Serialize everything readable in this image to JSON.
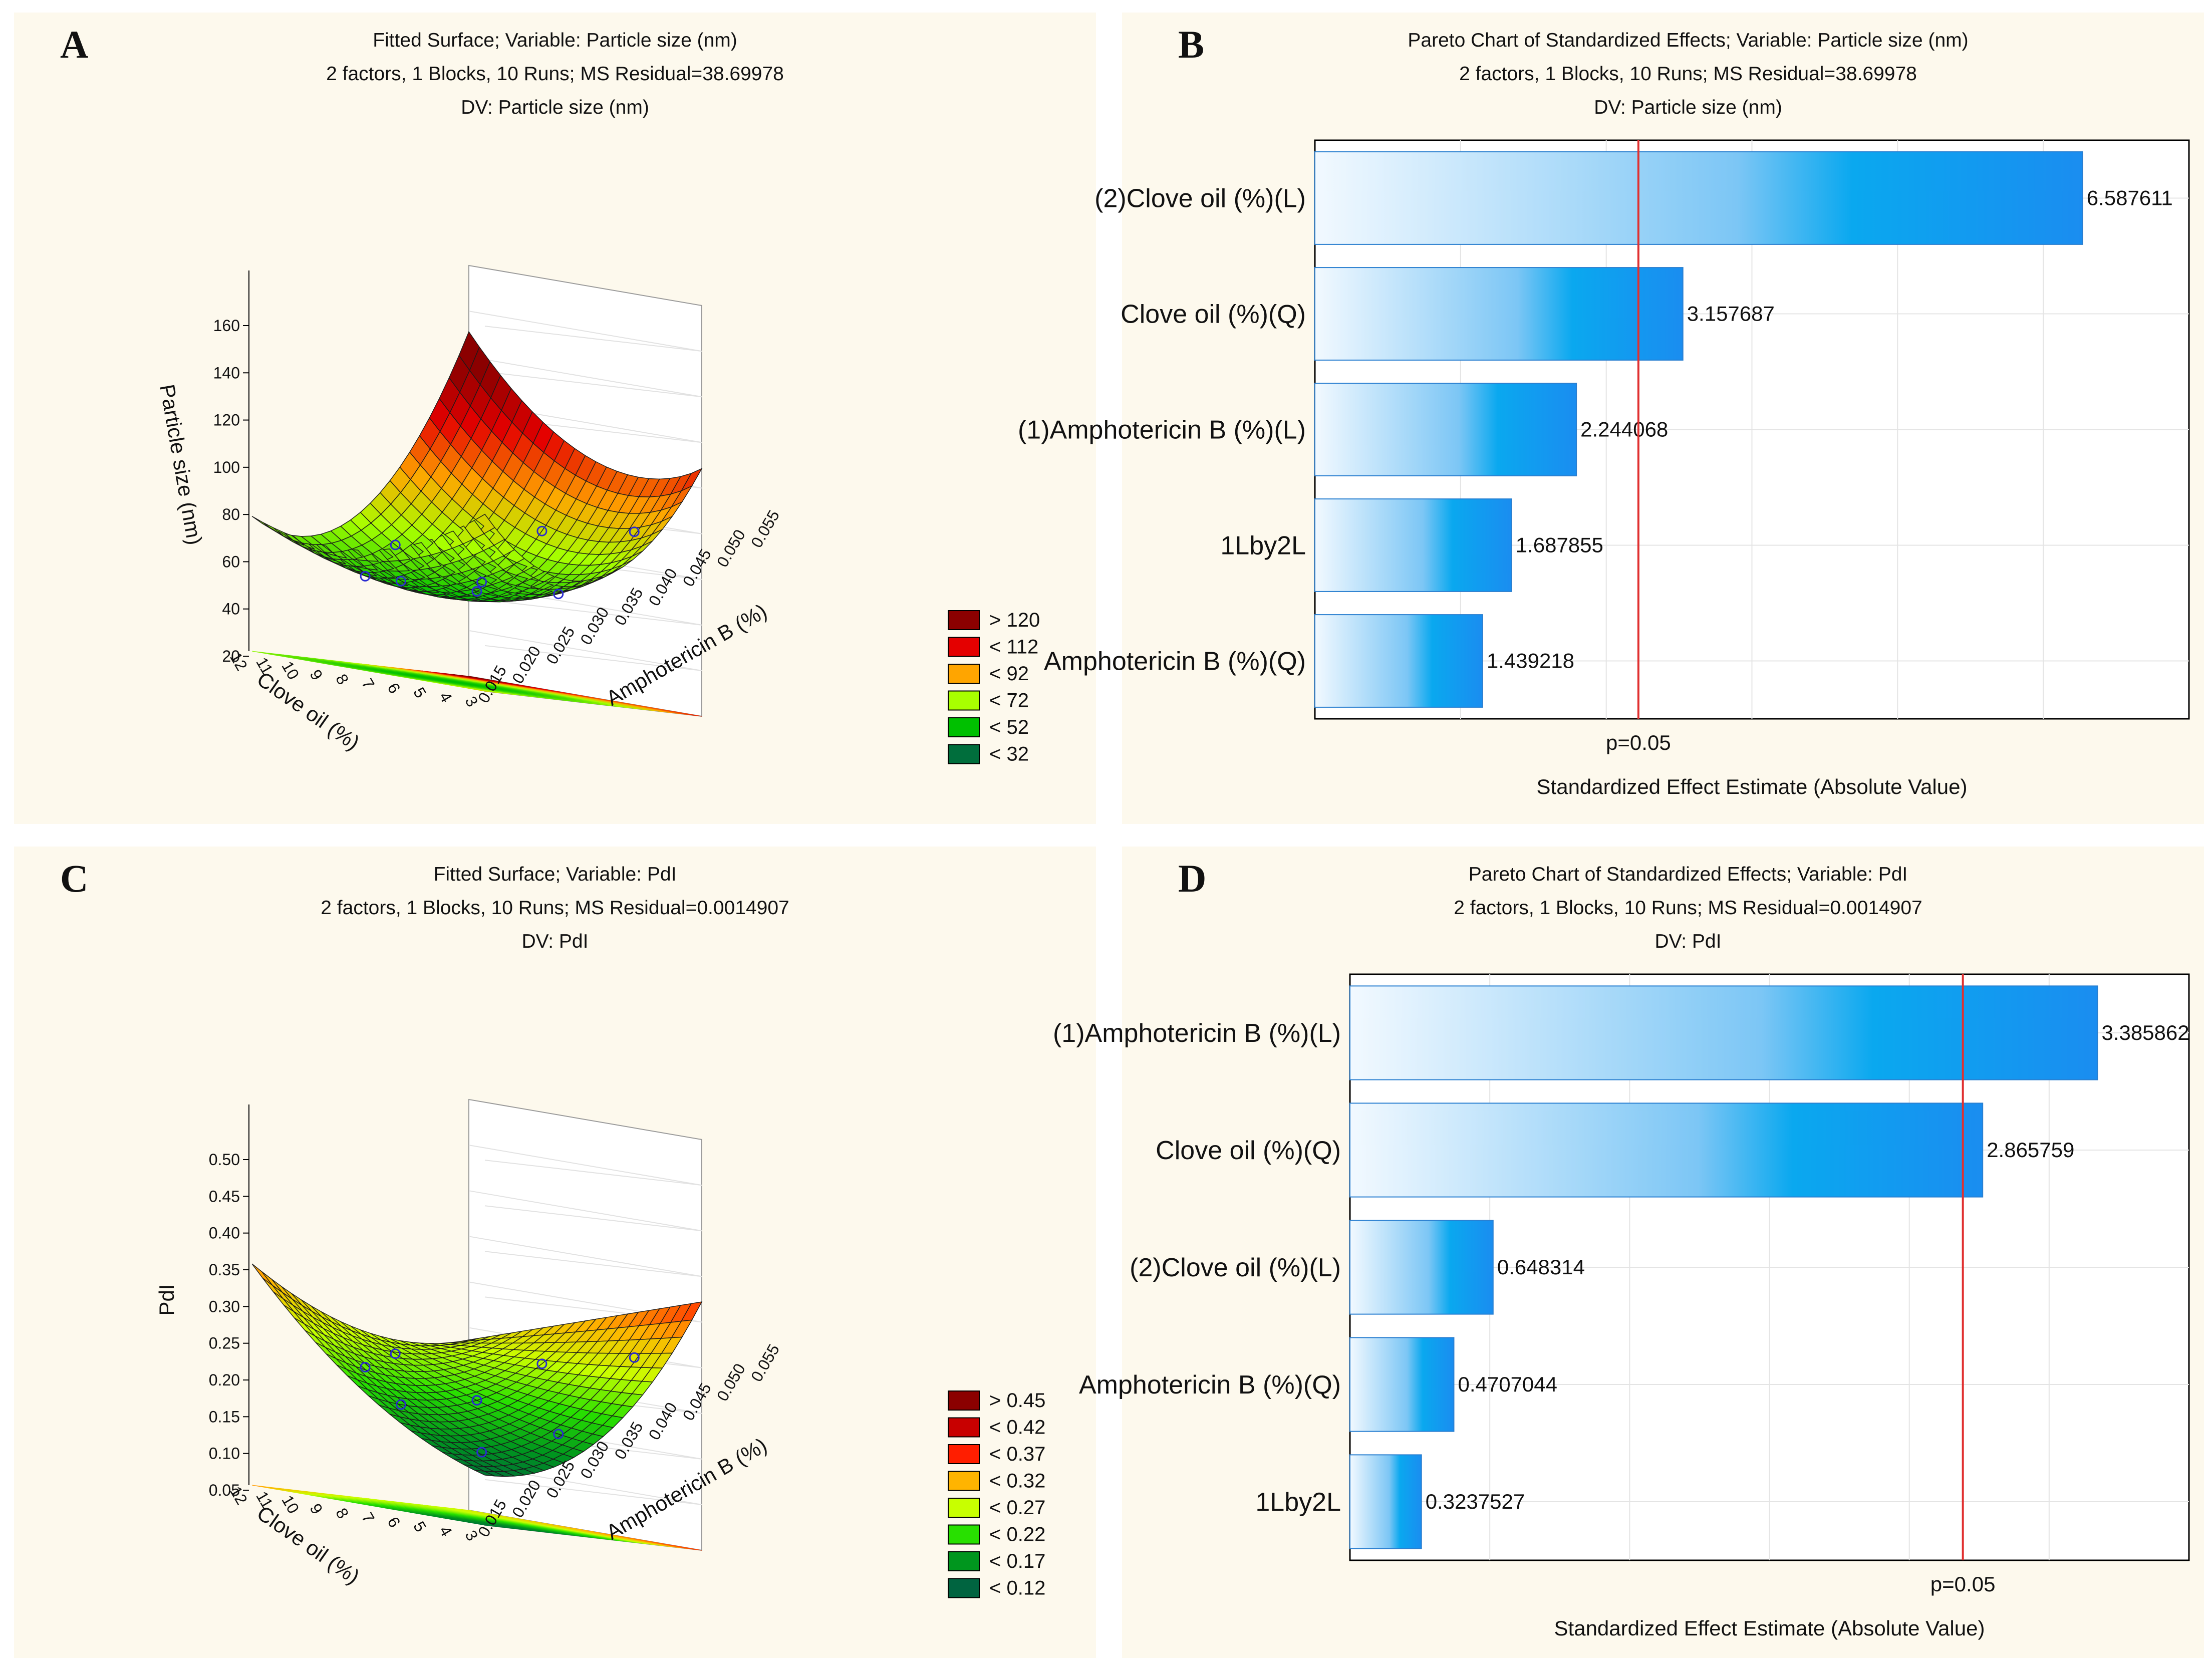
{
  "chart_data": [
    {
      "panel": "A",
      "type": "surface",
      "title": "Fitted Surface; Variable: Particle size (nm)",
      "subtitle": "2 factors, 1 Blocks, 10 Runs; MS Residual=38.69978",
      "dv": "DV: Particle size (nm)",
      "zlabel": "Particle size (nm)",
      "xlabel": "Clove oil (%)",
      "ylabel": "Amphotericin B (%)",
      "zticks": [
        "160",
        "140",
        "120",
        "100",
        "80",
        "60",
        "40",
        "20"
      ],
      "xticks": [
        "12",
        "11",
        "10",
        "9",
        "8",
        "7",
        "6",
        "5",
        "4",
        "3"
      ],
      "yticks": [
        "0.015",
        "0.020",
        "0.025",
        "0.030",
        "0.035",
        "0.040",
        "0.045",
        "0.050",
        "0.055"
      ],
      "legend": [
        "> 120",
        "< 112",
        "< 92",
        "< 72",
        "< 52",
        "< 32"
      ],
      "legend_colors": [
        "#8b0000",
        "#e40000",
        "#ffa500",
        "#a8ff00",
        "#00c000",
        "#006e3c"
      ]
    },
    {
      "panel": "B",
      "type": "bar",
      "orientation": "horizontal",
      "title": "Pareto Chart of Standardized Effects; Variable: Particle size (nm)",
      "subtitle": "2 factors, 1 Blocks, 10 Runs; MS Residual=38.69978",
      "dv": "DV: Particle size (nm)",
      "categories": [
        "(2)Clove oil (%)(L)",
        "Clove oil (%)(Q)",
        "(1)Amphotericin B (%)(L)",
        "1Lby2L",
        "Amphotericin B (%)(Q)"
      ],
      "values": [
        6.587611,
        3.157687,
        2.244068,
        1.687855,
        1.439218
      ],
      "value_labels": [
        "6.587611",
        "3.157687",
        "2.244068",
        "1.687855",
        "1.439218"
      ],
      "xlim": [
        0,
        7.5
      ],
      "reference_line": 2.776,
      "reference_label": "p=0.05",
      "xlabel": "Standardized Effect Estimate (Absolute Value)"
    },
    {
      "panel": "C",
      "type": "surface",
      "title": "Fitted Surface; Variable: PdI",
      "subtitle": "2 factors, 1 Blocks, 10 Runs; MS Residual=0.0014907",
      "dv": "DV: PdI",
      "zlabel": "PdI",
      "xlabel": "Clove oil (%)",
      "ylabel": "Amphotericin B (%)",
      "zticks": [
        "0.50",
        "0.45",
        "0.40",
        "0.35",
        "0.30",
        "0.25",
        "0.20",
        "0.15",
        "0.10",
        "0.05"
      ],
      "xticks": [
        "12",
        "11",
        "10",
        "9",
        "8",
        "7",
        "6",
        "5",
        "4",
        "3"
      ],
      "yticks": [
        "0.015",
        "0.020",
        "0.025",
        "0.030",
        "0.035",
        "0.040",
        "0.045",
        "0.050",
        "0.055"
      ],
      "legend": [
        "> 0.45",
        "< 0.42",
        "< 0.37",
        "< 0.32",
        "< 0.27",
        "< 0.22",
        "< 0.17",
        "< 0.12"
      ],
      "legend_colors": [
        "#8b0000",
        "#c80000",
        "#ff1e00",
        "#ffb400",
        "#c8ff00",
        "#28e000",
        "#00961e",
        "#006440"
      ]
    },
    {
      "panel": "D",
      "type": "bar",
      "orientation": "horizontal",
      "title": "Pareto Chart of Standardized Effects; Variable: PdI",
      "subtitle": "2 factors, 1 Blocks, 10 Runs; MS Residual=0.0014907",
      "dv": "DV: PdI",
      "categories": [
        "(1)Amphotericin B (%)(L)",
        "Clove oil (%)(Q)",
        "(2)Clove oil (%)(L)",
        "Amphotericin B (%)(Q)",
        "1Lby2L"
      ],
      "values": [
        3.385862,
        2.865759,
        0.648314,
        0.4707044,
        0.3237527
      ],
      "value_labels": [
        "3.385862",
        "2.865759",
        "0.648314",
        "0.4707044",
        "0.3237527"
      ],
      "xlim": [
        0,
        3.8
      ],
      "reference_line": 2.776,
      "reference_label": "p=0.05",
      "xlabel": "Standardized Effect Estimate (Absolute Value)"
    }
  ]
}
